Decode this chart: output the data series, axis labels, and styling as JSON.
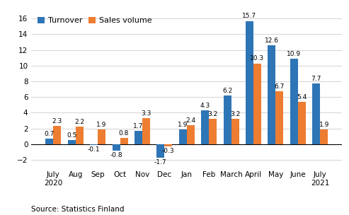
{
  "categories": [
    "July\n2020",
    "Aug",
    "Sep",
    "Oct",
    "Nov",
    "Dec",
    "Jan",
    "Feb",
    "March",
    "April",
    "May",
    "June",
    "July\n2021"
  ],
  "turnover": [
    0.7,
    0.5,
    -0.1,
    -0.8,
    1.7,
    -1.7,
    1.9,
    4.3,
    6.2,
    15.7,
    12.6,
    10.9,
    7.7
  ],
  "sales_volume": [
    2.3,
    2.2,
    1.9,
    0.8,
    3.3,
    -0.3,
    2.4,
    3.2,
    3.2,
    10.3,
    6.7,
    5.4,
    1.9
  ],
  "turnover_color": "#2e75b6",
  "sales_volume_color": "#ed7d31",
  "ylim": [
    -3,
    17
  ],
  "yticks": [
    -2,
    0,
    2,
    4,
    6,
    8,
    10,
    12,
    14,
    16
  ],
  "legend_labels": [
    "Turnover",
    "Sales volume"
  ],
  "source_text": "Source: Statistics Finland",
  "bar_width": 0.35,
  "label_fontsize": 6.5,
  "axis_fontsize": 7.5,
  "legend_fontsize": 8,
  "source_fontsize": 7.5
}
